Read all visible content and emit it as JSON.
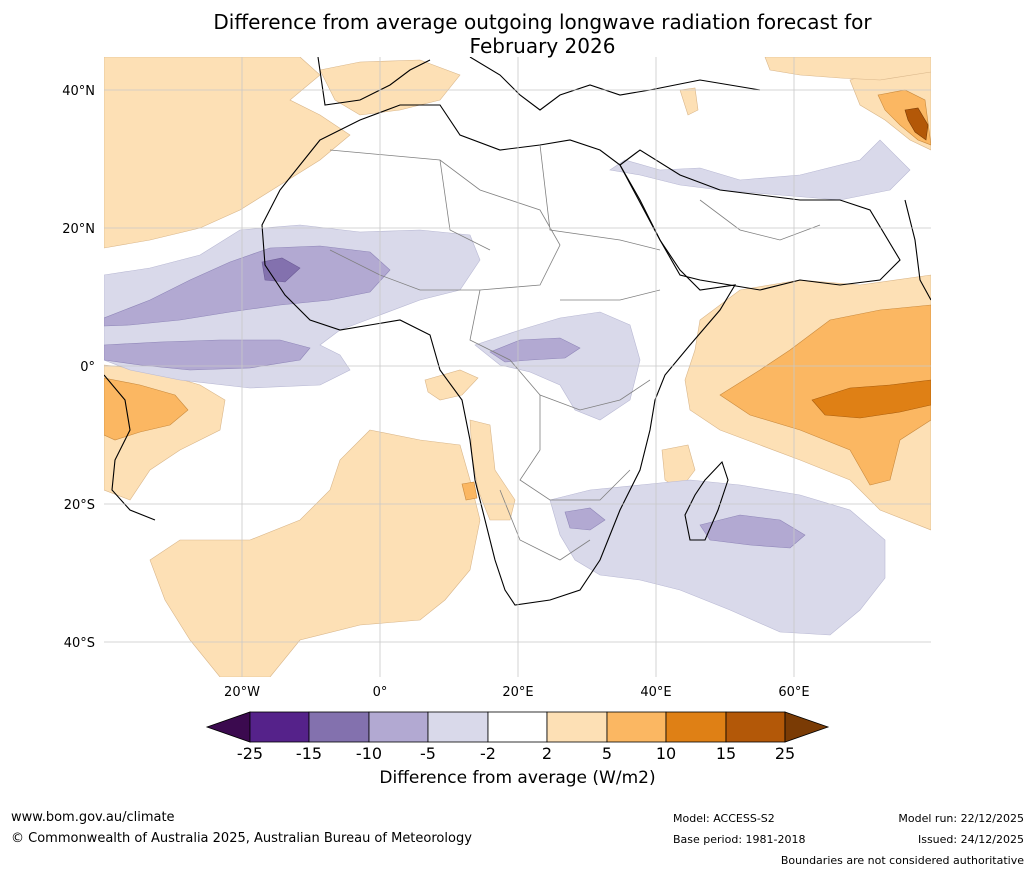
{
  "title_line1": "Difference from average outgoing longwave radiation forecast for",
  "title_line2": "February 2026",
  "lat_labels": [
    "40°N",
    "20°N",
    "0°",
    "20°S",
    "40°S"
  ],
  "lon_labels": [
    "20°W",
    "0°",
    "20°E",
    "40°E",
    "60°E"
  ],
  "colorbar": {
    "ticks": [
      "-25",
      "-15",
      "-10",
      "-5",
      "-2",
      "2",
      "5",
      "10",
      "15",
      "25"
    ],
    "colors": [
      "#3b0a4f",
      "#55228a",
      "#8371ae",
      "#b2a9d2",
      "#d9d9ea",
      "#ffffff",
      "#fde0b5",
      "#fbb762",
      "#df8015",
      "#b35808",
      "#7a3b05"
    ],
    "title": "Difference from average (W/m2)"
  },
  "footer": {
    "website": "www.bom.gov.au/climate",
    "copyright": "© Commonwealth of Australia 2025, Australian Bureau of Meteorology",
    "model": "Model: ACCESS-S2",
    "base_period": "Base period: 1981-2018",
    "model_run": "Model run: 22/12/2025",
    "issued": "Issued: 24/12/2025",
    "disclaimer": "Boundaries are not considered authoritative"
  }
}
